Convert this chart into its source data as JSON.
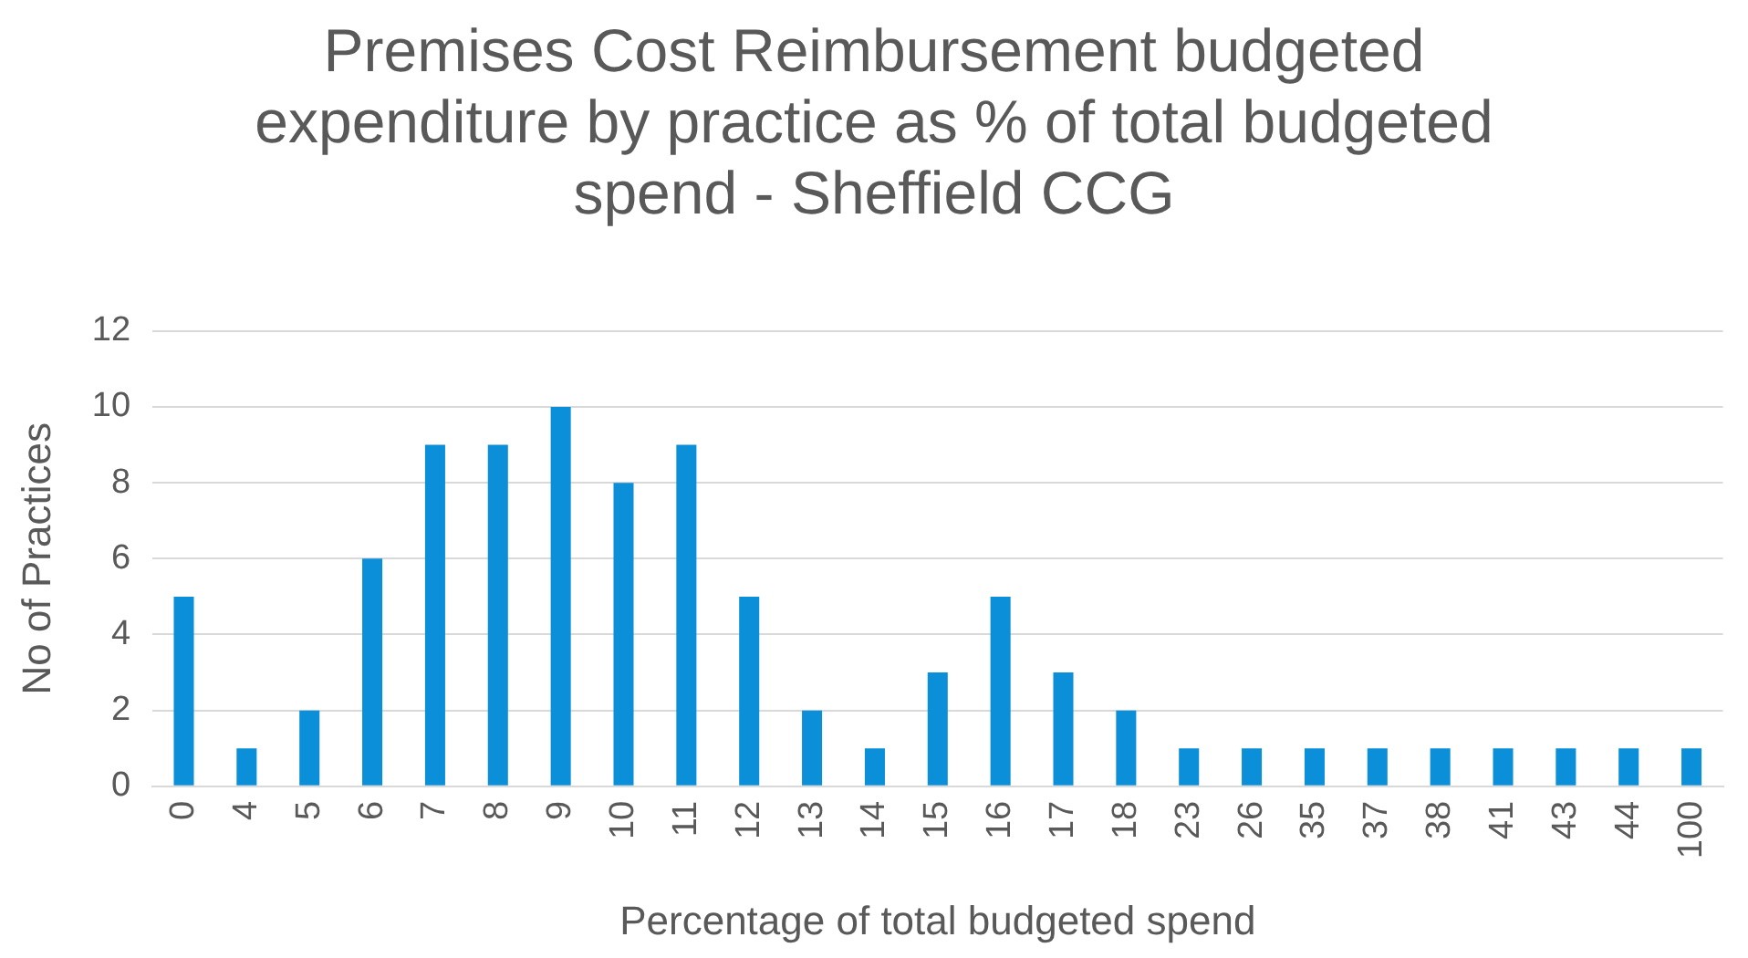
{
  "chart_data": {
    "type": "bar",
    "title": "Premises Cost Reimbursement budgeted expenditure by practice as % of total budgeted spend - Sheffield CCG",
    "xlabel": "Percentage of total budgeted spend",
    "ylabel": "No of Practices",
    "categories": [
      "0",
      "4",
      "5",
      "6",
      "7",
      "8",
      "9",
      "10",
      "11",
      "12",
      "13",
      "14",
      "15",
      "16",
      "17",
      "18",
      "23",
      "26",
      "35",
      "37",
      "38",
      "41",
      "43",
      "44",
      "100"
    ],
    "values": [
      5,
      1,
      2,
      6,
      9,
      9,
      10,
      8,
      9,
      5,
      2,
      1,
      3,
      5,
      3,
      2,
      1,
      1,
      1,
      1,
      1,
      1,
      1,
      1,
      1
    ],
    "color": "#0a8fd8",
    "ylim": [
      0,
      12
    ],
    "yticks": [
      0,
      2,
      4,
      6,
      8,
      10,
      12
    ],
    "grid": "y",
    "legend": false
  }
}
